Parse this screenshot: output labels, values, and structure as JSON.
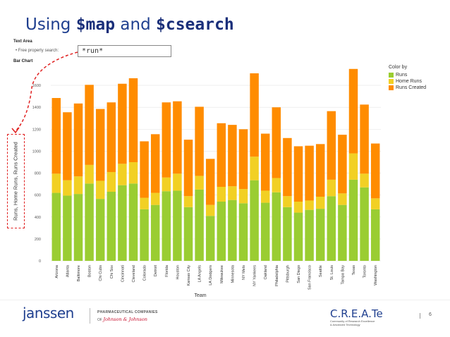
{
  "slide": {
    "title_prefix": "Using ",
    "title_code1": "$map",
    "title_mid": " and ",
    "title_code2": "$csearch",
    "text_area_label": "Text Area",
    "search_label": "• Free property search:",
    "search_value": "*run*",
    "bar_chart_label": "Bar Chart",
    "page_number": "6"
  },
  "footer": {
    "janssen": "janssen",
    "pharma_line": "PHARMACEUTICAL COMPANIES",
    "of_text": "OF",
    "jj_text": "Johnson & Johnson",
    "create_title": "C.R.E.A.Te",
    "create_sub1": "Community of Research Excellence",
    "create_sub2": "& Advanced Technology"
  },
  "colors": {
    "runs": "#9acd32",
    "home_runs": "#f2d024",
    "runs_created": "#ff8c00",
    "title": "#1f3f8f",
    "annotation": "#e02020"
  },
  "chart_data": {
    "type": "bar",
    "stacked": true,
    "title": "",
    "xlabel": "Team",
    "ylabel": "Runs, Home Runs, Runs Created",
    "ylim": [
      0,
      1800
    ],
    "yticks": [
      0,
      200,
      400,
      600,
      800,
      1000,
      1200,
      1400,
      1600
    ],
    "grid": true,
    "legend_title": "Color by",
    "legend_position": "top-right",
    "categories": [
      "Arizona",
      "Atlanta",
      "Baltimore",
      "Boston",
      "Chi Cubs",
      "Chi Sox",
      "Cincinnati",
      "Cleveland",
      "Colorado",
      "Detroit",
      "Florida",
      "Houston",
      "Kansas City",
      "LA Angels",
      "LA Dodgers",
      "Milwaukee",
      "Minnesota",
      "NY Mets",
      "NY Yankees",
      "Oakland",
      "Philadelphia",
      "Pittsburgh",
      "San Diego",
      "San Francisco",
      "Seattle",
      "St. Louis",
      "Tampa Bay",
      "Texas",
      "Toronto",
      "Washington"
    ],
    "series": [
      {
        "name": "Runs",
        "color": "#9acd32",
        "values": [
          620,
          595,
          610,
          705,
          565,
          630,
          690,
          705,
          470,
          510,
          635,
          640,
          490,
          650,
          410,
          540,
          555,
          525,
          735,
          530,
          625,
          490,
          440,
          465,
          475,
          590,
          510,
          740,
          670,
          470
        ]
      },
      {
        "name": "Home Runs",
        "color": "#f2d024",
        "values": [
          175,
          140,
          160,
          170,
          165,
          180,
          195,
          195,
          105,
          110,
          125,
          155,
          100,
          125,
          100,
          135,
          125,
          130,
          215,
          110,
          130,
          100,
          100,
          85,
          110,
          150,
          105,
          240,
          125,
          100
        ]
      },
      {
        "name": "Runs Created",
        "color": "#ff8c00",
        "values": [
          690,
          620,
          665,
          730,
          655,
          635,
          730,
          765,
          515,
          535,
          685,
          660,
          515,
          630,
          420,
          580,
          560,
          545,
          760,
          520,
          645,
          530,
          505,
          500,
          480,
          625,
          535,
          770,
          630,
          500
        ]
      }
    ]
  }
}
